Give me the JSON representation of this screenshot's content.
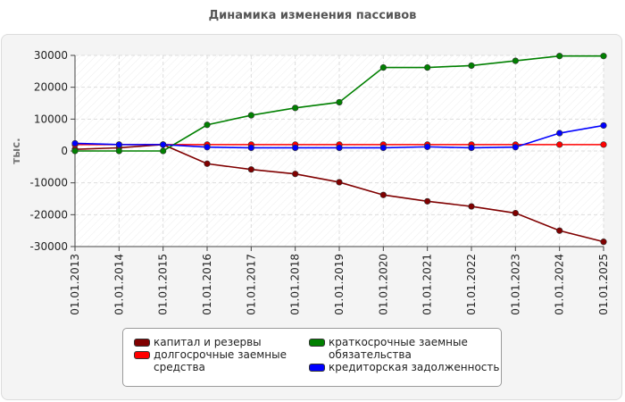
{
  "chart_data": {
    "type": "line",
    "title": "Динамика изменения пассивов",
    "ylabel": "тыс.",
    "xlabel": "",
    "ylim": [
      -30000,
      30000
    ],
    "yticks": [
      30000,
      20000,
      10000,
      0,
      -10000,
      -20000,
      -30000
    ],
    "grid": true,
    "legend_position": "bottom",
    "categories": [
      "01.01.2013",
      "01.01.2014",
      "01.01.2015",
      "01.01.2016",
      "01.01.2017",
      "01.01.2018",
      "01.01.2019",
      "01.01.2020",
      "01.01.2021",
      "01.01.2022",
      "01.01.2023",
      "01.01.2024",
      "01.01.2025"
    ],
    "series": [
      {
        "name": "капитал и резервы",
        "color": "#800000",
        "values": [
          500,
          1000,
          2000,
          -4000,
          -5800,
          -7200,
          -9800,
          -13800,
          -15800,
          -17400,
          -19500,
          -25000,
          -28500
        ]
      },
      {
        "name": "долгосрочные заемные средства",
        "color": "#ff0000",
        "values": [
          2000,
          2000,
          2000,
          2000,
          2000,
          2000,
          2000,
          2000,
          2000,
          2000,
          2000,
          2000,
          2000
        ]
      },
      {
        "name": "краткосрочные заемные обязательства",
        "color": "#008000",
        "values": [
          0,
          0,
          0,
          8200,
          11200,
          13500,
          15300,
          26200,
          26200,
          26800,
          28300,
          29800,
          29800
        ]
      },
      {
        "name": "кредиторская задолженность",
        "color": "#0000ff",
        "values": [
          2400,
          2000,
          2000,
          1200,
          1000,
          1000,
          1000,
          1000,
          1300,
          1000,
          1200,
          5600,
          8000
        ]
      }
    ]
  },
  "legend": {
    "items": [
      {
        "label": "капитал и резервы",
        "color": "#800000"
      },
      {
        "label": "долгосрочные заемные\nсредства",
        "color": "#ff0000"
      },
      {
        "label": "краткосрочные заемные\nобязательства",
        "color": "#008000"
      },
      {
        "label": "кредиторская задолженность",
        "color": "#0000ff"
      }
    ]
  }
}
